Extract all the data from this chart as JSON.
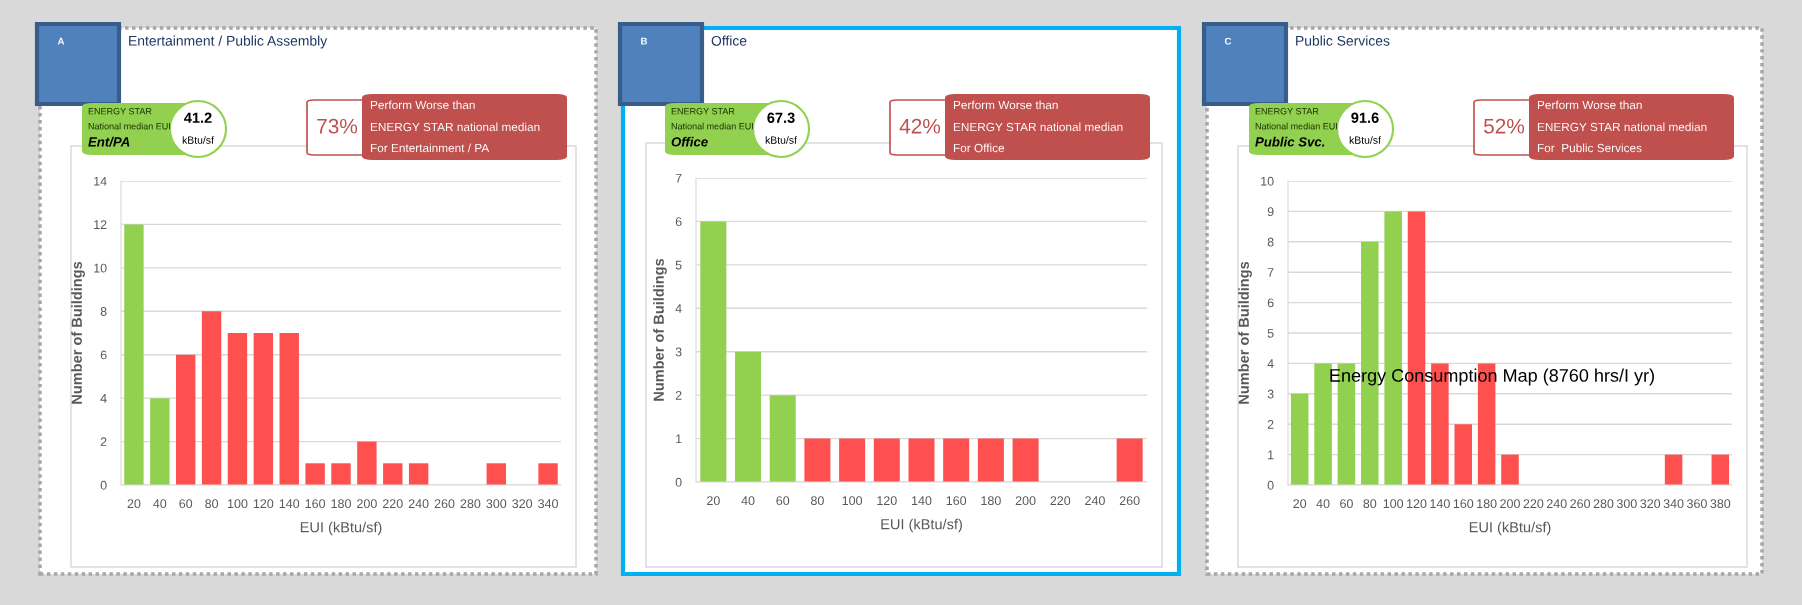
{
  "chart_data": [
    {
      "type": "bar",
      "title": "Entertainment / Public Assembly",
      "xlabel": "EUI (kBtu/sf)",
      "ylabel": "Number of Buildings",
      "categories": [
        "20",
        "40",
        "60",
        "80",
        "100",
        "120",
        "140",
        "160",
        "180",
        "200",
        "220",
        "240",
        "260",
        "280",
        "300",
        "320",
        "340"
      ],
      "values": [
        12,
        4,
        6,
        8,
        7,
        7,
        7,
        1,
        1,
        2,
        1,
        1,
        0,
        0,
        1,
        0,
        1
      ],
      "colors": [
        "#92d050",
        "#92d050",
        "#ff5050",
        "#ff5050",
        "#ff5050",
        "#ff5050",
        "#ff5050",
        "#ff5050",
        "#ff5050",
        "#ff5050",
        "#ff5050",
        "#ff5050",
        "#ff5050",
        "#ff5050",
        "#ff5050",
        "#ff5050",
        "#ff5050"
      ],
      "ylim": [
        0,
        14
      ],
      "yticks": [
        0,
        2,
        4,
        6,
        8,
        10,
        12,
        14
      ],
      "grid": "y",
      "annotations": [
        "A",
        "ENERGY STAR",
        "National median EUI",
        "Ent/PA",
        "41.2",
        "kBtu/sf",
        "73%",
        "Perform Worse than",
        "ENERGY STAR national median",
        "For Entertainment / PA"
      ]
    },
    {
      "type": "bar",
      "title": "Office",
      "xlabel": "EUI (kBtu/sf)",
      "ylabel": "Number of Buildings",
      "categories": [
        "20",
        "40",
        "60",
        "80",
        "100",
        "120",
        "140",
        "160",
        "180",
        "200",
        "220",
        "240",
        "260"
      ],
      "values": [
        6,
        3,
        2,
        1,
        1,
        1,
        1,
        1,
        1,
        1,
        0,
        0,
        1
      ],
      "colors": [
        "#92d050",
        "#92d050",
        "#92d050",
        "#ff5050",
        "#ff5050",
        "#ff5050",
        "#ff5050",
        "#ff5050",
        "#ff5050",
        "#ff5050",
        "#ff5050",
        "#ff5050",
        "#ff5050"
      ],
      "ylim": [
        0,
        7
      ],
      "yticks": [
        0,
        1,
        2,
        3,
        4,
        5,
        6,
        7
      ],
      "grid": "y",
      "annotations": [
        "B",
        "ENERGY STAR",
        "National median EUI",
        "Office",
        "67.3",
        "kBtu/sf",
        "42%",
        "Perform Worse than",
        "ENERGY STAR national median",
        "For Office"
      ]
    },
    {
      "type": "bar",
      "title": "Public Services",
      "xlabel": "EUI (kBtu/sf)",
      "ylabel": "Number of Buildings",
      "categories": [
        "20",
        "40",
        "60",
        "80",
        "100",
        "120",
        "140",
        "160",
        "180",
        "200",
        "220",
        "240",
        "260",
        "280",
        "300",
        "320",
        "340",
        "360",
        "380"
      ],
      "values": [
        3,
        4,
        4,
        8,
        9,
        9,
        4,
        2,
        4,
        1,
        0,
        0,
        0,
        0,
        0,
        0,
        1,
        0,
        1
      ],
      "colors": [
        "#92d050",
        "#92d050",
        "#92d050",
        "#92d050",
        "#92d050",
        "#ff5050",
        "#ff5050",
        "#ff5050",
        "#ff5050",
        "#ff5050",
        "#ff5050",
        "#ff5050",
        "#ff5050",
        "#ff5050",
        "#ff5050",
        "#ff5050",
        "#ff5050",
        "#ff5050",
        "#ff5050"
      ],
      "ylim": [
        0,
        10
      ],
      "yticks": [
        0,
        1,
        2,
        3,
        4,
        5,
        6,
        7,
        8,
        9,
        10
      ],
      "grid": "y",
      "annotations": [
        "C",
        "ENERGY STAR",
        "National median EUI",
        "Public Svc.",
        "91.6",
        "kBtu/sf",
        "52%",
        "Perform Worse than",
        "ENERGY STAR national median",
        "For  Public Services",
        "Energy Consumption Map (8760 hrs/I yr)"
      ]
    }
  ]
}
